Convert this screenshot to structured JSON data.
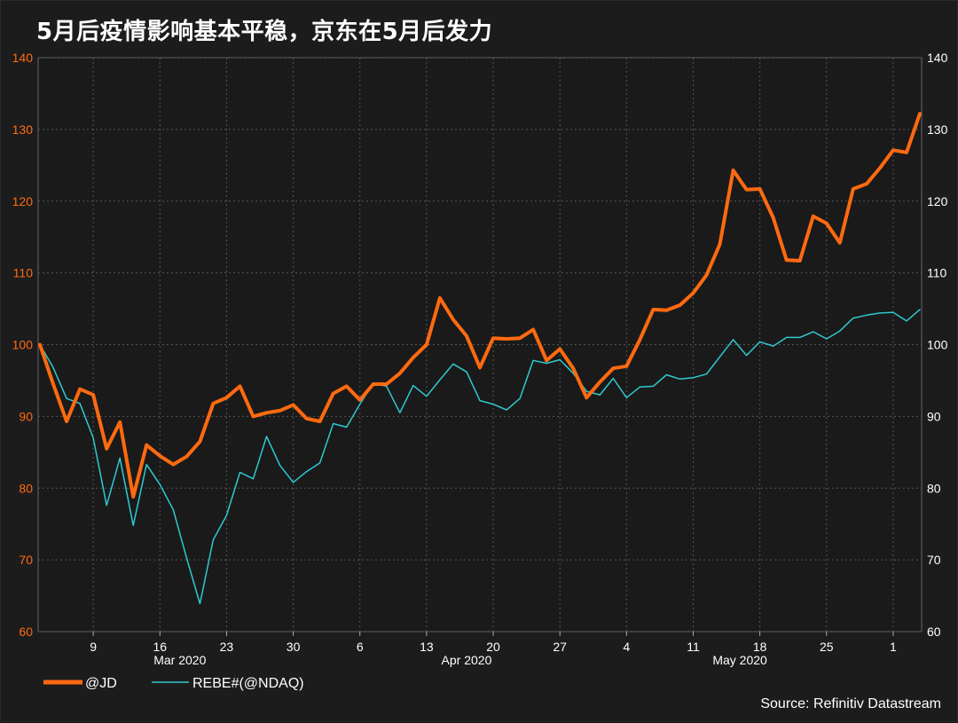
{
  "title": "5月后疫情影响基本平稳，京东在5月后发力",
  "source": "Source: Refinitiv Datastream",
  "colors": {
    "jd": "#ff6a10",
    "rebe": "#2fc9cf",
    "left_axis": "#ff6a10",
    "right_axis": "#ffffff",
    "grid": "#555555"
  },
  "chart_data": {
    "type": "line",
    "ylim": [
      60,
      140
    ],
    "y_ticks": [
      60,
      70,
      80,
      90,
      100,
      110,
      120,
      130,
      140
    ],
    "x_ticks": [
      "9",
      "16",
      "23",
      "30",
      "6",
      "13",
      "20",
      "27",
      "4",
      "11",
      "18",
      "25",
      "1"
    ],
    "month_labels": [
      "Mar 2020",
      "Apr 2020",
      "May 2020"
    ],
    "grid": true,
    "legend_position": "bottom-left",
    "series": [
      {
        "name": "@JD",
        "values": [
          100,
          94.5,
          89.3,
          93.8,
          93,
          85.5,
          89.2,
          78.8,
          86,
          84.5,
          83.3,
          84.4,
          86.5,
          91.8,
          92.6,
          94.2,
          90,
          90.5,
          90.8,
          91.6,
          89.7,
          89.3,
          93.2,
          94.2,
          92.3,
          94.5,
          94.5,
          96,
          98.2,
          100,
          106.5,
          103.5,
          101.2,
          96.8,
          100.9,
          100.8,
          100.9,
          102.1,
          97.8,
          99.4,
          96.7,
          92.6,
          94.8,
          96.7,
          97,
          100.7,
          104.9,
          104.8,
          105.5,
          107.2,
          109.7,
          114,
          124.3,
          121.6,
          121.7,
          117.7,
          111.8,
          111.7,
          117.9,
          116.9,
          114.2,
          121.7,
          122.4,
          124.6,
          127.1,
          126.8,
          132.2
        ]
      },
      {
        "name": "REBE#(@NDAQ)",
        "values": [
          100,
          96.8,
          92.5,
          91.8,
          87,
          77.6,
          84.2,
          74.8,
          83.3,
          80.5,
          77,
          70.3,
          63.9,
          72.8,
          76.2,
          82.2,
          81.3,
          87.2,
          83.2,
          80.8,
          82.3,
          83.5,
          89,
          88.5,
          91.7,
          94.6,
          94.2,
          90.5,
          94.3,
          92.8,
          95.1,
          97.3,
          96.2,
          92.2,
          91.7,
          90.9,
          92.5,
          97.8,
          97.4,
          97.9,
          96,
          93.5,
          93,
          95.3,
          92.6,
          94.1,
          94.2,
          95.8,
          95.2,
          95.4,
          95.9,
          98.3,
          100.7,
          98.5,
          100.4,
          99.8,
          101,
          101,
          101.8,
          100.8,
          101.9,
          103.7,
          104.1,
          104.4,
          104.5,
          103.3,
          104.9
        ]
      }
    ]
  }
}
